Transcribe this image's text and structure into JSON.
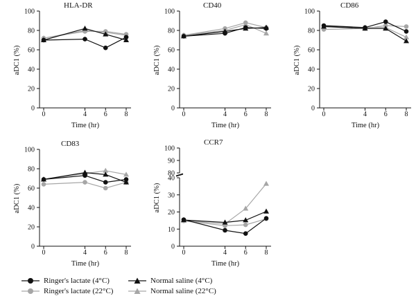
{
  "chart_data": [
    {
      "type": "line",
      "title": "HLA-DR",
      "xlabel": "Time (hr)",
      "ylabel": "aDC1 (%)",
      "x": [
        0,
        4,
        6,
        8
      ],
      "ylim": [
        0,
        100
      ],
      "yticks": [
        0,
        20,
        40,
        60,
        80,
        100
      ],
      "series": [
        {
          "name": "Ringer's lactate (4°C)",
          "values": [
            70,
            71,
            62,
            73
          ]
        },
        {
          "name": "Ringer's lactate (22°C)",
          "values": [
            72,
            79,
            79,
            76
          ]
        },
        {
          "name": "Normal saline (4°C)",
          "values": [
            70,
            82,
            76,
            70
          ]
        },
        {
          "name": "Normal saline (22°C)",
          "values": [
            72,
            80,
            78,
            75
          ]
        }
      ]
    },
    {
      "type": "line",
      "title": "CD40",
      "xlabel": "Time (hr)",
      "ylabel": "aDC1 (%)",
      "x": [
        0,
        4,
        6,
        8
      ],
      "ylim": [
        0,
        100
      ],
      "yticks": [
        0,
        20,
        40,
        60,
        80,
        100
      ],
      "series": [
        {
          "name": "Ringer's lactate (4°C)",
          "values": [
            74,
            77,
            83,
            82
          ]
        },
        {
          "name": "Ringer's lactate (22°C)",
          "values": [
            75,
            82,
            88,
            83
          ]
        },
        {
          "name": "Normal saline (4°C)",
          "values": [
            74,
            79,
            82,
            83
          ]
        },
        {
          "name": "Normal saline (22°C)",
          "values": [
            75,
            80,
            86,
            77
          ]
        }
      ]
    },
    {
      "type": "line",
      "title": "CD86",
      "xlabel": "Time (hr)",
      "ylabel": "aDC1 (%)",
      "x": [
        0,
        4,
        6,
        8
      ],
      "ylim": [
        0,
        100
      ],
      "yticks": [
        0,
        20,
        40,
        60,
        80,
        100
      ],
      "series": [
        {
          "name": "Ringer's lactate (4°C)",
          "values": [
            85,
            83,
            89,
            79
          ]
        },
        {
          "name": "Ringer's lactate (22°C)",
          "values": [
            81,
            82,
            85,
            84
          ]
        },
        {
          "name": "Normal saline (4°C)",
          "values": [
            84,
            82,
            82,
            69
          ]
        },
        {
          "name": "Normal saline (22°C)",
          "values": [
            84,
            83,
            83,
            73
          ]
        }
      ]
    },
    {
      "type": "line",
      "title": "CD83",
      "xlabel": "Time (hr)",
      "ylabel": "aDC1 (%)",
      "x": [
        0,
        4,
        6,
        8
      ],
      "ylim": [
        0,
        100
      ],
      "yticks": [
        0,
        20,
        40,
        60,
        80,
        100
      ],
      "series": [
        {
          "name": "Ringer's lactate (4°C)",
          "values": [
            69,
            73,
            66,
            69
          ]
        },
        {
          "name": "Ringer's lactate (22°C)",
          "values": [
            64,
            66,
            60,
            66
          ]
        },
        {
          "name": "Normal saline (4°C)",
          "values": [
            69,
            76,
            74,
            66
          ]
        },
        {
          "name": "Normal saline (22°C)",
          "values": [
            69,
            75,
            78,
            74
          ]
        }
      ]
    },
    {
      "type": "line",
      "title": "CCR7",
      "xlabel": "Time (hr)",
      "ylabel": "aDC1 (%)",
      "x": [
        0,
        4,
        6,
        8
      ],
      "ylim": [
        0,
        100
      ],
      "axis_break": [
        40,
        80
      ],
      "yticks": [
        0,
        10,
        20,
        30,
        40,
        80,
        90,
        100
      ],
      "series": [
        {
          "name": "Ringer's lactate (4°C)",
          "values": [
            15.5,
            9.3,
            7.4,
            16.3
          ]
        },
        {
          "name": "Ringer's lactate (22°C)",
          "values": [
            14.8,
            12.0,
            12.5,
            16.0
          ]
        },
        {
          "name": "Normal saline (4°C)",
          "values": [
            15.3,
            13.9,
            15.2,
            20.3
          ]
        },
        {
          "name": "Normal saline (22°C)",
          "values": [
            15.0,
            13.0,
            22.0,
            36.5
          ]
        }
      ]
    }
  ],
  "legend": {
    "items": [
      {
        "label": "Ringer's lactate (4°C)",
        "marker": "circle",
        "color": "#111111"
      },
      {
        "label": "Normal saline (4°C)",
        "marker": "triangle",
        "color": "#111111"
      },
      {
        "label": "Ringer's lactate (22°C)",
        "marker": "circle",
        "color": "#a6a6a6"
      },
      {
        "label": "Normal saline (22°C)",
        "marker": "triangle",
        "color": "#a6a6a6"
      }
    ]
  },
  "colors": {
    "black_series": "#111111",
    "gray_series": "#a6a6a6",
    "axis": "#111111"
  }
}
